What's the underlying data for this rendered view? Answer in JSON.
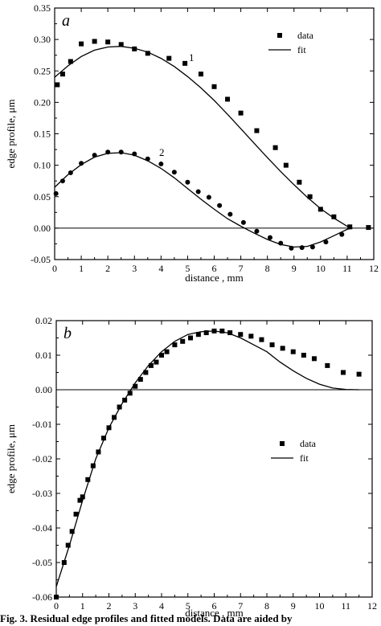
{
  "chart_data": [
    {
      "type": "scatter",
      "panel_label": "a",
      "xlabel": "distance , mm",
      "ylabel": "edge profile, μm",
      "xlim": [
        0,
        12
      ],
      "ylim": [
        -0.05,
        0.35
      ],
      "xticks": [
        0,
        1,
        2,
        3,
        4,
        5,
        6,
        7,
        8,
        9,
        10,
        11,
        12
      ],
      "yticks": [
        -0.05,
        0.0,
        0.05,
        0.1,
        0.15,
        0.2,
        0.25,
        0.3,
        0.35
      ],
      "ytick_labels": [
        "-0.05",
        "0.00",
        "0.05",
        "0.10",
        "0.15",
        "0.20",
        "0.25",
        "0.30",
        "0.35"
      ],
      "legend": {
        "position": "top-right",
        "entries": [
          "data",
          "fit"
        ]
      },
      "zero_line": true,
      "series": [
        {
          "label": "1",
          "kind": "data",
          "marker": "square",
          "x": [
            0.1,
            0.3,
            0.6,
            1.0,
            1.5,
            2.0,
            2.5,
            3.0,
            3.5,
            4.3,
            4.9,
            5.5,
            6.0,
            6.5,
            7.0,
            7.6,
            8.3,
            8.7,
            9.2,
            9.6,
            10.0,
            10.5,
            11.1,
            11.8
          ],
          "y": [
            0.228,
            0.245,
            0.265,
            0.293,
            0.297,
            0.296,
            0.292,
            0.285,
            0.278,
            0.27,
            0.262,
            0.245,
            0.225,
            0.205,
            0.183,
            0.155,
            0.128,
            0.1,
            0.073,
            0.05,
            0.03,
            0.018,
            0.002,
            0.001
          ]
        },
        {
          "label": "1",
          "kind": "fit",
          "x": [
            0.0,
            0.5,
            1.0,
            1.5,
            2.0,
            2.5,
            3.0,
            3.5,
            4.0,
            4.5,
            5.0,
            5.5,
            6.0,
            6.5,
            7.0,
            7.5,
            8.0,
            8.5,
            9.0,
            9.5,
            10.0,
            10.5,
            11.0,
            11.2
          ],
          "y": [
            0.24,
            0.258,
            0.273,
            0.283,
            0.288,
            0.289,
            0.286,
            0.28,
            0.27,
            0.257,
            0.241,
            0.223,
            0.203,
            0.181,
            0.158,
            0.135,
            0.112,
            0.09,
            0.069,
            0.049,
            0.031,
            0.016,
            0.003,
            0.0
          ]
        },
        {
          "label": "2",
          "kind": "data",
          "marker": "circle",
          "x": [
            0.05,
            0.3,
            0.6,
            1.0,
            1.5,
            2.0,
            2.5,
            3.0,
            3.5,
            4.0,
            4.5,
            5.0,
            5.4,
            5.8,
            6.2,
            6.6,
            7.1,
            7.6,
            8.1,
            8.5,
            8.9,
            9.3,
            9.7,
            10.2,
            10.8
          ],
          "y": [
            0.055,
            0.075,
            0.088,
            0.103,
            0.116,
            0.121,
            0.121,
            0.118,
            0.11,
            0.102,
            0.089,
            0.073,
            0.058,
            0.049,
            0.036,
            0.022,
            0.009,
            -0.005,
            -0.015,
            -0.024,
            -0.032,
            -0.031,
            -0.03,
            -0.022,
            -0.01
          ]
        },
        {
          "label": "2",
          "kind": "fit",
          "x": [
            0.0,
            0.5,
            1.0,
            1.5,
            2.0,
            2.5,
            3.0,
            3.5,
            4.0,
            4.5,
            5.0,
            5.5,
            6.0,
            6.5,
            7.0,
            7.5,
            8.0,
            8.5,
            9.0,
            9.5,
            10.0,
            10.5,
            11.0,
            11.2
          ],
          "y": [
            0.065,
            0.085,
            0.101,
            0.113,
            0.119,
            0.12,
            0.116,
            0.107,
            0.095,
            0.08,
            0.063,
            0.046,
            0.03,
            0.015,
            0.003,
            -0.008,
            -0.018,
            -0.026,
            -0.03,
            -0.029,
            -0.022,
            -0.012,
            -0.002,
            0.0
          ]
        }
      ]
    },
    {
      "type": "scatter",
      "panel_label": "b",
      "xlabel": "distance , mm",
      "ylabel": "edge profile, μm",
      "xlim": [
        0,
        12
      ],
      "ylim": [
        -0.06,
        0.02
      ],
      "xticks": [
        0,
        1,
        2,
        3,
        4,
        5,
        6,
        7,
        8,
        9,
        10,
        11,
        12
      ],
      "yticks": [
        -0.06,
        -0.05,
        -0.04,
        -0.03,
        -0.02,
        -0.01,
        0.0,
        0.01,
        0.02
      ],
      "ytick_labels": [
        "-0.06",
        "-0.05",
        "-0.04",
        "-0.03",
        "-0.02",
        "-0.01",
        "0.00",
        "0.01",
        "0.02"
      ],
      "legend": {
        "position": "center-right",
        "entries": [
          "data",
          "fit"
        ]
      },
      "zero_line": true,
      "series": [
        {
          "kind": "data",
          "marker": "square",
          "x": [
            0.0,
            0.3,
            0.45,
            0.6,
            0.75,
            0.9,
            1.0,
            1.2,
            1.4,
            1.6,
            1.8,
            2.0,
            2.2,
            2.4,
            2.6,
            2.8,
            3.0,
            3.2,
            3.4,
            3.6,
            3.8,
            4.0,
            4.2,
            4.5,
            4.8,
            5.1,
            5.4,
            5.7,
            6.0,
            6.3,
            6.6,
            7.0,
            7.4,
            7.8,
            8.2,
            8.6,
            9.0,
            9.4,
            9.8,
            10.3,
            10.9,
            11.5
          ],
          "y": [
            -0.06,
            -0.05,
            -0.045,
            -0.041,
            -0.036,
            -0.032,
            -0.031,
            -0.026,
            -0.022,
            -0.018,
            -0.014,
            -0.011,
            -0.008,
            -0.005,
            -0.003,
            -0.001,
            0.001,
            0.003,
            0.005,
            0.007,
            0.008,
            0.01,
            0.011,
            0.013,
            0.014,
            0.015,
            0.016,
            0.0165,
            0.017,
            0.017,
            0.0165,
            0.016,
            0.0155,
            0.0145,
            0.013,
            0.012,
            0.011,
            0.01,
            0.009,
            0.007,
            0.005,
            0.0045
          ]
        },
        {
          "kind": "fit",
          "x": [
            0.0,
            0.5,
            1.0,
            1.5,
            2.0,
            2.5,
            3.0,
            3.5,
            4.0,
            4.5,
            5.0,
            5.5,
            6.0,
            6.5,
            7.0,
            7.5,
            8.0,
            8.5,
            9.0,
            9.5,
            10.0,
            10.5,
            11.0,
            11.5
          ],
          "y": [
            -0.057,
            -0.045,
            -0.032,
            -0.02,
            -0.011,
            -0.004,
            0.002,
            0.007,
            0.011,
            0.014,
            0.016,
            0.0168,
            0.017,
            0.0165,
            0.015,
            0.013,
            0.011,
            0.008,
            0.0055,
            0.0033,
            0.0016,
            0.0005,
            0.0001,
            0.0
          ]
        }
      ]
    }
  ],
  "curve_labels": [
    "1",
    "2"
  ],
  "caption": "Fig. 3.   Residual edge profiles and fitted models. Data are aided by"
}
